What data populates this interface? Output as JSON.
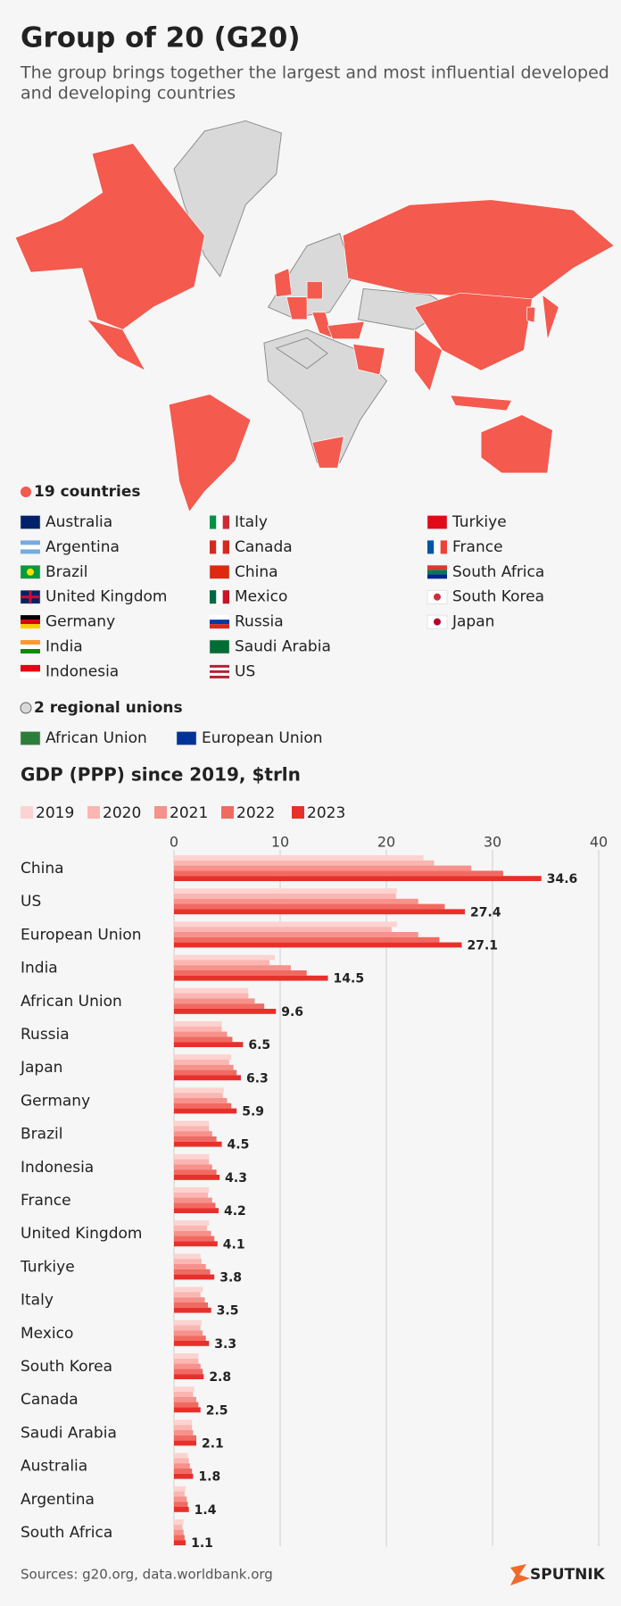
{
  "header": {
    "title": "Group of 20  (G20)",
    "subtitle": [
      "The group brings together the largest and most influential developed",
      "and developing countries"
    ]
  },
  "map_legend": {
    "countries_heading": "19 countries",
    "countries": [
      "Australia",
      "Argentina",
      "Brazil",
      "United Kingdom",
      "Germany",
      "India",
      "Indonesia",
      "Italy",
      "Canada",
      "China",
      "Mexico",
      "Russia",
      "Saudi Arabia",
      "US",
      "Turkiye",
      "France",
      "South Africa",
      "South Korea",
      "Japan"
    ],
    "unions_heading": "2 regional unions",
    "unions": [
      "African Union",
      "European Union"
    ]
  },
  "chart_data": {
    "type": "bar",
    "orientation": "horizontal",
    "title": "GDP (PPP) since 2019, $trln",
    "categories": [
      "China",
      "US",
      "European Union",
      "India",
      "African Union",
      "Russia",
      "Japan",
      "Germany",
      "Brazil",
      "Indonesia",
      "France",
      "United Kingdom",
      "Turkiye",
      "Italy",
      "Mexico",
      "South Korea",
      "Canada",
      "Saudi Arabia",
      "Australia",
      "Argentina",
      "South Africa"
    ],
    "series": [
      {
        "name": "2019",
        "color": "#fcd3d0",
        "values": [
          23.5,
          21,
          21,
          9.5,
          7,
          4.5,
          5.4,
          4.7,
          3.3,
          3.3,
          3.3,
          3.3,
          2.5,
          2.7,
          2.6,
          2.3,
          1.9,
          1.7,
          1.3,
          1.1,
          0.9
        ]
      },
      {
        "name": "2020",
        "color": "#fbb6b1",
        "values": [
          24.5,
          20.9,
          20.5,
          9,
          7,
          4.5,
          5.2,
          4.6,
          3.3,
          3.3,
          3.2,
          3.1,
          2.6,
          2.5,
          2.5,
          2.3,
          1.8,
          1.7,
          1.4,
          1.0,
          0.8
        ]
      },
      {
        "name": "2021",
        "color": "#f7918b",
        "values": [
          28,
          23,
          23,
          11,
          7.6,
          5,
          5.6,
          5,
          3.6,
          3.6,
          3.6,
          3.5,
          3,
          2.9,
          2.7,
          2.5,
          2.1,
          1.8,
          1.5,
          1.2,
          0.9
        ]
      },
      {
        "name": "2022",
        "color": "#f16a62",
        "values": [
          31,
          25.5,
          25,
          12.5,
          8.5,
          5.5,
          5.9,
          5.4,
          4,
          4,
          3.9,
          3.8,
          3.4,
          3.2,
          3,
          2.7,
          2.3,
          2.1,
          1.7,
          1.3,
          1.0
        ]
      },
      {
        "name": "2023",
        "color": "#e8302b",
        "values": [
          34.6,
          27.4,
          27.1,
          14.5,
          9.6,
          6.5,
          6.3,
          5.9,
          4.5,
          4.3,
          4.2,
          4.1,
          3.8,
          3.5,
          3.3,
          2.8,
          2.5,
          2.1,
          1.8,
          1.4,
          1.1
        ]
      }
    ],
    "xlim": [
      0,
      40
    ],
    "xticks": [
      0,
      10,
      20,
      30,
      40
    ],
    "grid": true
  },
  "footer": {
    "sources": "Sources: g20.org, data.worldbank.org",
    "brand": "SPUTNIK"
  }
}
